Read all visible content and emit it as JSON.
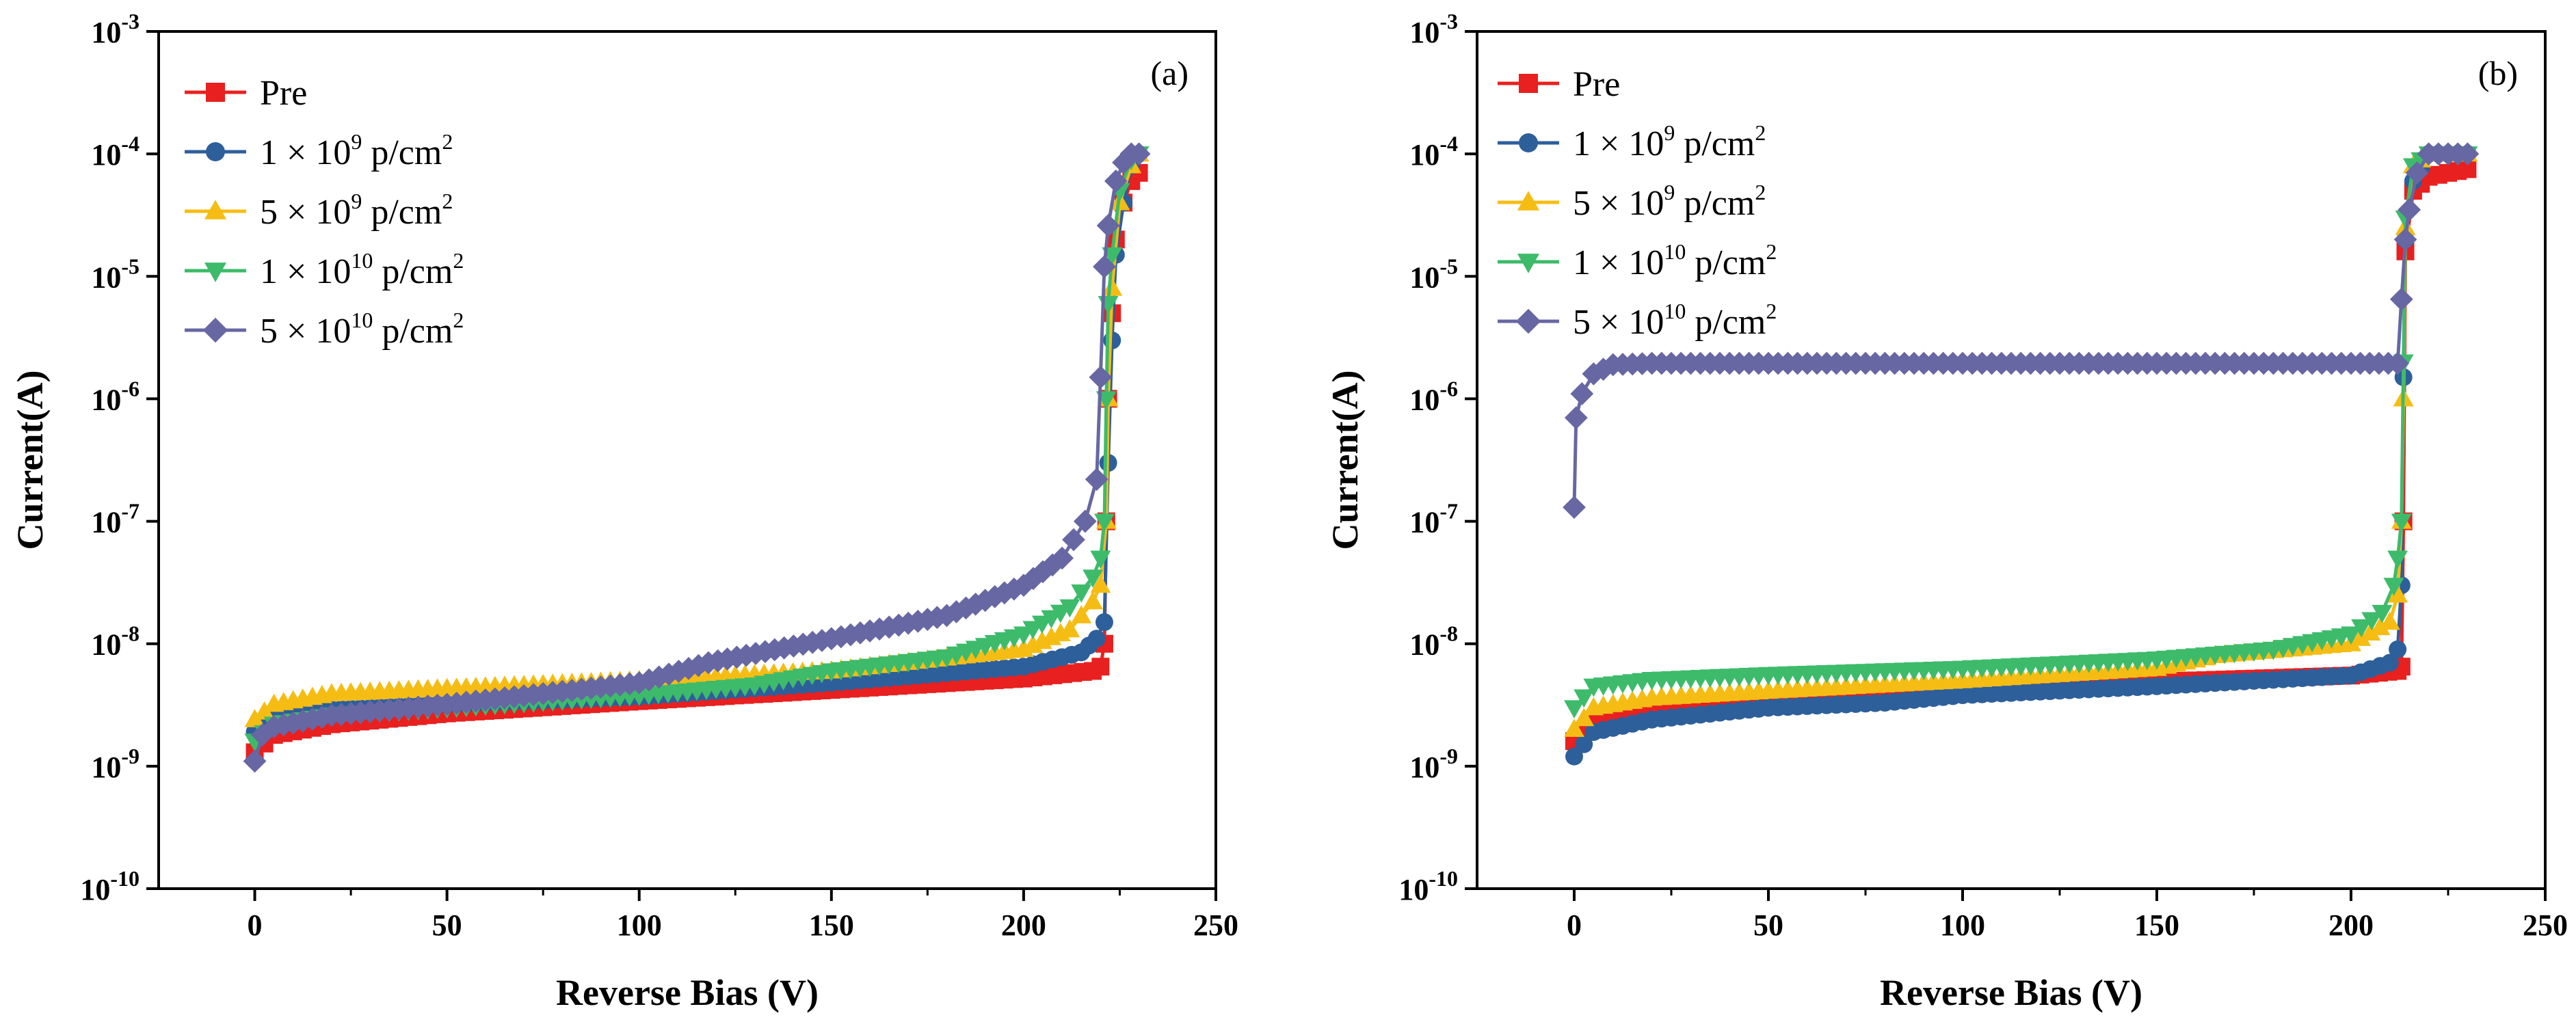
{
  "chart_data": [
    {
      "type": "line",
      "panel_label": "(a)",
      "xlabel": "Reverse Bias (V)",
      "ylabel": "Current(A)",
      "xlim": [
        -25,
        250
      ],
      "ylim_log10": [
        -10,
        -3
      ],
      "yscale": "log",
      "xticks": [
        0,
        50,
        100,
        150,
        200,
        250
      ],
      "xtick_labels": [
        "0",
        "50",
        "100",
        "150",
        "200",
        "250"
      ],
      "yticks_exp": [
        -10,
        -9,
        -8,
        -7,
        -6,
        -5,
        -4,
        -3
      ],
      "ytick_labels": [
        {
          "base": "10",
          "exp": "-10"
        },
        {
          "base": "10",
          "exp": "-9"
        },
        {
          "base": "10",
          "exp": "-8"
        },
        {
          "base": "10",
          "exp": "-7"
        },
        {
          "base": "10",
          "exp": "-6"
        },
        {
          "base": "10",
          "exp": "-5"
        },
        {
          "base": "10",
          "exp": "-4"
        },
        {
          "base": "10",
          "exp": "-3"
        }
      ],
      "legend_position": "top-left",
      "series": [
        {
          "name": "Pre",
          "label_parts": {
            "main": "Pre",
            "exp": "",
            "tail": ""
          },
          "color": "#e8201f",
          "marker": "square",
          "points": [
            [
              0,
              1.3e-09
            ],
            [
              5,
              1.8e-09
            ],
            [
              20,
              2.2e-09
            ],
            [
              50,
              2.7e-09
            ],
            [
              100,
              3.4e-09
            ],
            [
              150,
              4.2e-09
            ],
            [
              200,
              5.2e-09
            ],
            [
              218,
              6e-09
            ],
            [
              220,
              6.5e-09
            ],
            [
              221,
              1e-08
            ],
            [
              221.5,
              1e-07
            ],
            [
              222,
              1e-06
            ],
            [
              223,
              5e-06
            ],
            [
              224,
              2e-05
            ],
            [
              226,
              4e-05
            ],
            [
              228,
              6e-05
            ],
            [
              230,
              7e-05
            ]
          ]
        },
        {
          "name": "1 × 10^9 p/cm^2",
          "label_parts": {
            "main": "1 × 10",
            "exp": "9",
            "tail": " p/cm",
            "tail_exp": "2"
          },
          "color": "#2d5f9a",
          "marker": "circle",
          "points": [
            [
              0,
              1.9e-09
            ],
            [
              5,
              2.5e-09
            ],
            [
              20,
              2.9e-09
            ],
            [
              50,
              3.2e-09
            ],
            [
              100,
              3.7e-09
            ],
            [
              150,
              4.8e-09
            ],
            [
              200,
              6.5e-09
            ],
            [
              215,
              8.5e-09
            ],
            [
              219,
              1.1e-08
            ],
            [
              221,
              1.5e-08
            ],
            [
              222,
              3e-07
            ],
            [
              223,
              3e-06
            ],
            [
              224,
              1.5e-05
            ],
            [
              226,
              4e-05
            ],
            [
              228,
              8e-05
            ],
            [
              230,
              0.0001
            ]
          ]
        },
        {
          "name": "5 × 10^9 p/cm^2",
          "label_parts": {
            "main": "5 × 10",
            "exp": "9",
            "tail": " p/cm",
            "tail_exp": "2"
          },
          "color": "#f5bd14",
          "marker": "triangle-up",
          "points": [
            [
              0,
              2.4e-09
            ],
            [
              5,
              3.2e-09
            ],
            [
              20,
              3.9e-09
            ],
            [
              50,
              4.3e-09
            ],
            [
              100,
              5e-09
            ],
            [
              150,
              6e-09
            ],
            [
              200,
              9e-09
            ],
            [
              212,
              1.3e-08
            ],
            [
              218,
              2.2e-08
            ],
            [
              220,
              3e-08
            ],
            [
              221.5,
              1e-07
            ],
            [
              222,
              1e-06
            ],
            [
              223,
              8e-06
            ],
            [
              225,
              4e-05
            ],
            [
              228,
              8e-05
            ],
            [
              230,
              0.0001
            ]
          ]
        },
        {
          "name": "1 × 10^10 p/cm^2",
          "label_parts": {
            "main": "1 × 10",
            "exp": "10",
            "tail": " p/cm",
            "tail_exp": "2"
          },
          "color": "#3dbb6b",
          "marker": "triangle-down",
          "points": [
            [
              0,
              1.6e-09
            ],
            [
              5,
              2.2e-09
            ],
            [
              20,
              2.6e-09
            ],
            [
              50,
              3e-09
            ],
            [
              100,
              3.8e-09
            ],
            [
              130,
              4.6e-09
            ],
            [
              150,
              6e-09
            ],
            [
              180,
              7.8e-09
            ],
            [
              200,
              1.2e-08
            ],
            [
              212,
              2e-08
            ],
            [
              218,
              3.5e-08
            ],
            [
              220,
              5e-08
            ],
            [
              221,
              1e-07
            ],
            [
              221.5,
              1e-06
            ],
            [
              222,
              6e-06
            ],
            [
              223,
              1.5e-05
            ],
            [
              225,
              5e-05
            ],
            [
              228,
              9e-05
            ],
            [
              230,
              0.0001
            ]
          ]
        },
        {
          "name": "5 × 10^10 p/cm^2",
          "label_parts": {
            "main": "5 × 10",
            "exp": "10",
            "tail": " p/cm",
            "tail_exp": "2"
          },
          "color": "#6767a3",
          "marker": "diamond",
          "points": [
            [
              0,
              1.1e-09
            ],
            [
              2,
              1.8e-09
            ],
            [
              5,
              2.1e-09
            ],
            [
              20,
              2.6e-09
            ],
            [
              50,
              3.2e-09
            ],
            [
              100,
              4.8e-09
            ],
            [
              118,
              7e-09
            ],
            [
              150,
              1.1e-08
            ],
            [
              180,
              1.7e-08
            ],
            [
              200,
              3e-08
            ],
            [
              210,
              5e-08
            ],
            [
              216,
              1e-07
            ],
            [
              219,
              2.2e-07
            ],
            [
              220,
              1.5e-06
            ],
            [
              221,
              1.2e-05
            ],
            [
              222,
              2.6e-05
            ],
            [
              224,
              6e-05
            ],
            [
              226,
              8.5e-05
            ],
            [
              228,
              0.0001
            ],
            [
              230,
              0.0001
            ]
          ]
        }
      ]
    },
    {
      "type": "line",
      "panel_label": "(b)",
      "xlabel": "Reverse Bias (V)",
      "ylabel": "Current(A)",
      "xlim": [
        -25,
        250
      ],
      "ylim_log10": [
        -10,
        -3
      ],
      "yscale": "log",
      "xticks": [
        0,
        50,
        100,
        150,
        200,
        250
      ],
      "xtick_labels": [
        "0",
        "50",
        "100",
        "150",
        "200",
        "250"
      ],
      "yticks_exp": [
        -10,
        -9,
        -8,
        -7,
        -6,
        -5,
        -4,
        -3
      ],
      "ytick_labels": [
        {
          "base": "10",
          "exp": "-10"
        },
        {
          "base": "10",
          "exp": "-9"
        },
        {
          "base": "10",
          "exp": "-8"
        },
        {
          "base": "10",
          "exp": "-7"
        },
        {
          "base": "10",
          "exp": "-6"
        },
        {
          "base": "10",
          "exp": "-5"
        },
        {
          "base": "10",
          "exp": "-4"
        },
        {
          "base": "10",
          "exp": "-3"
        }
      ],
      "legend_position": "top-left",
      "series": [
        {
          "name": "Pre",
          "label_parts": {
            "main": "Pre",
            "exp": "",
            "tail": ""
          },
          "color": "#e8201f",
          "marker": "square",
          "points": [
            [
              0,
              1.6e-09
            ],
            [
              5,
              2.3e-09
            ],
            [
              20,
              3e-09
            ],
            [
              50,
              3.4e-09
            ],
            [
              100,
              4.2e-09
            ],
            [
              150,
              4.9e-09
            ],
            [
              200,
              5.5e-09
            ],
            [
              212,
              6e-09
            ],
            [
              213,
              6.5e-09
            ],
            [
              213.5,
              1e-07
            ],
            [
              214,
              1.6e-05
            ],
            [
              216,
              5e-05
            ],
            [
              220,
              6.5e-05
            ],
            [
              225,
              7e-05
            ],
            [
              230,
              7.5e-05
            ]
          ]
        },
        {
          "name": "1 × 10^9 p/cm^2",
          "label_parts": {
            "main": "1 × 10",
            "exp": "9",
            "tail": " p/cm",
            "tail_exp": "2"
          },
          "color": "#2d5f9a",
          "marker": "circle",
          "points": [
            [
              0,
              1.2e-09
            ],
            [
              5,
              1.9e-09
            ],
            [
              20,
              2.4e-09
            ],
            [
              50,
              3e-09
            ],
            [
              80,
              3.3e-09
            ],
            [
              100,
              3.8e-09
            ],
            [
              150,
              4.5e-09
            ],
            [
              200,
              5.5e-09
            ],
            [
              210,
              7e-09
            ],
            [
              212,
              9e-09
            ],
            [
              213,
              3e-08
            ],
            [
              213.5,
              1.5e-06
            ],
            [
              214,
              2e-05
            ],
            [
              216,
              6e-05
            ],
            [
              220,
              0.0001
            ],
            [
              230,
              0.0001
            ]
          ]
        },
        {
          "name": "5 × 10^9 p/cm^2",
          "label_parts": {
            "main": "5 × 10",
            "exp": "9",
            "tail": " p/cm",
            "tail_exp": "2"
          },
          "color": "#f5bd14",
          "marker": "triangle-up",
          "points": [
            [
              0,
              2e-09
            ],
            [
              5,
              3e-09
            ],
            [
              20,
              3.6e-09
            ],
            [
              50,
              4.1e-09
            ],
            [
              100,
              5e-09
            ],
            [
              150,
              6.3e-09
            ],
            [
              165,
              8e-09
            ],
            [
              200,
              1e-08
            ],
            [
              210,
              1.5e-08
            ],
            [
              212,
              2.5e-08
            ],
            [
              213,
              1e-07
            ],
            [
              213.5,
              1e-06
            ],
            [
              214,
              2.5e-05
            ],
            [
              216,
              8e-05
            ],
            [
              220,
              0.0001
            ],
            [
              230,
              0.0001
            ]
          ]
        },
        {
          "name": "1 × 10^10 p/cm^2",
          "label_parts": {
            "main": "1 × 10",
            "exp": "10",
            "tail": " p/cm",
            "tail_exp": "2"
          },
          "color": "#3dbb6b",
          "marker": "triangle-down",
          "points": [
            [
              0,
              3e-09
            ],
            [
              5,
              4.5e-09
            ],
            [
              20,
              5.1e-09
            ],
            [
              50,
              5.6e-09
            ],
            [
              100,
              6.3e-09
            ],
            [
              150,
              7.5e-09
            ],
            [
              180,
              9e-09
            ],
            [
              200,
              1.2e-08
            ],
            [
              208,
              1.8e-08
            ],
            [
              211,
              3e-08
            ],
            [
              212,
              5e-08
            ],
            [
              213,
              1e-07
            ],
            [
              213.5,
              2e-06
            ],
            [
              214,
              3e-05
            ],
            [
              216,
              8e-05
            ],
            [
              220,
              0.0001
            ],
            [
              230,
              0.0001
            ]
          ]
        },
        {
          "name": "5 × 10^10 p/cm^2",
          "label_parts": {
            "main": "5 × 10",
            "exp": "10",
            "tail": " p/cm",
            "tail_exp": "2"
          },
          "color": "#6767a3",
          "marker": "diamond",
          "points": [
            [
              0,
              1.3e-07
            ],
            [
              0.5,
              7e-07
            ],
            [
              2,
              1.1e-06
            ],
            [
              5,
              1.6e-06
            ],
            [
              10,
              1.9e-06
            ],
            [
              20,
              1.95e-06
            ],
            [
              50,
              1.95e-06
            ],
            [
              100,
              1.95e-06
            ],
            [
              150,
              1.95e-06
            ],
            [
              200,
              1.95e-06
            ],
            [
              212,
              1.95e-06
            ],
            [
              213,
              6.5e-06
            ],
            [
              214,
              2e-05
            ],
            [
              215,
              3.5e-05
            ],
            [
              217,
              7e-05
            ],
            [
              220,
              0.0001
            ],
            [
              225,
              0.0001
            ],
            [
              230,
              0.0001
            ]
          ]
        }
      ]
    }
  ]
}
